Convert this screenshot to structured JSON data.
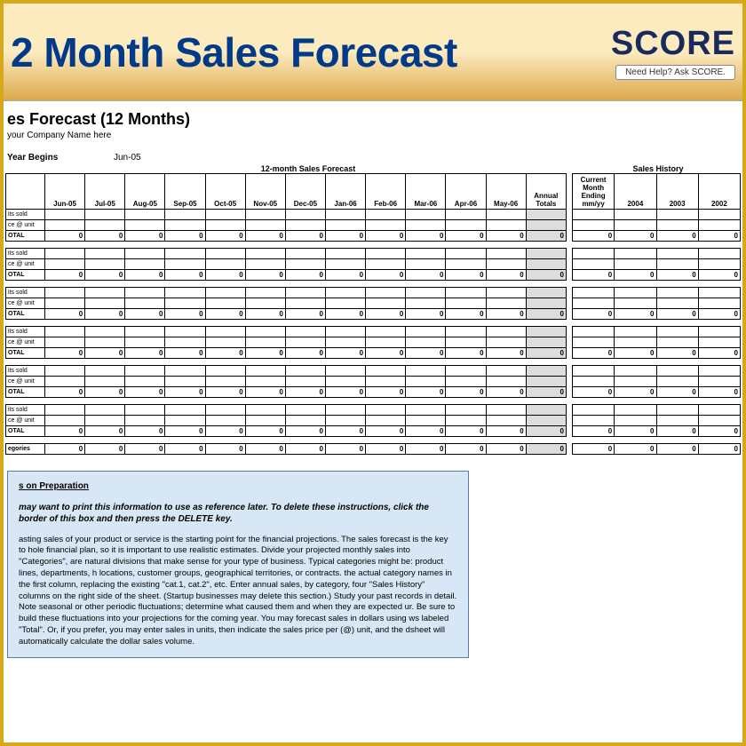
{
  "banner": {
    "title": "2 Month Sales Forecast",
    "logo": "SCORE",
    "help_label": "Need Help? Ask SCORE.",
    "bg_top": "#fdebc0",
    "bg_bottom": "#dba94a",
    "title_color": "#003a88",
    "logo_color": "#1a2a5c"
  },
  "sheet": {
    "title": "es Forecast (12 Months)",
    "company_hint": "your Company Name here",
    "year_begins_label": "Year Begins",
    "year_begins_value": "Jun-05",
    "forecast_label": "12-month Sales Forecast",
    "history_label": "Sales History"
  },
  "forecast_headers": [
    "Jun-05",
    "Jul-05",
    "Aug-05",
    "Sep-05",
    "Oct-05",
    "Nov-05",
    "Dec-05",
    "Jan-06",
    "Feb-06",
    "Mar-06",
    "Apr-06",
    "May-06",
    "Annual Totals"
  ],
  "history_headers": [
    "Current Month Ending mm/yy",
    "2004",
    "2003",
    "2002"
  ],
  "row_labels": {
    "units": "its sold",
    "price": "ce @ unit",
    "total": "OTAL"
  },
  "categories_label": "egories",
  "zero": "0",
  "blocks": 6,
  "notes": {
    "title": "s on Preparation",
    "intro": "may want to print this information to use as reference later. To delete these instructions, click the border of this box and then press the DELETE key.",
    "body": "asting sales of your product or service is the starting point for the financial projections. The sales forecast is the key to hole financial plan, so it is important to use realistic estimates. Divide your projected monthly sales into \"Categories\", are natural divisions that make sense for your type of business. Typical categories might be: product lines, departments, h locations, customer groups, geographical territories, or contracts. the actual category names in the first column, replacing the existing \"cat.1, cat.2\", etc. Enter annual sales, by category, four \"Sales History\" columns on the right side of the sheet. (Startup businesses may delete this section.) Study your past records in detail. Note seasonal or other periodic fluctuations; determine what caused them and when they are expected ur. Be sure to build these fluctuations into your projections for the coming year. You may forecast sales in dollars using ws labeled \"Total\". Or, if you prefer, you may enter sales in units, then indicate the sales price per (@) unit, and the dsheet will automatically calculate the dollar sales volume."
  },
  "colors": {
    "border": "#000000",
    "annual_bg": "#dddddd",
    "notes_bg": "#d8e7f5",
    "notes_border": "#5a7ca8",
    "frame": "#d6a81c"
  }
}
